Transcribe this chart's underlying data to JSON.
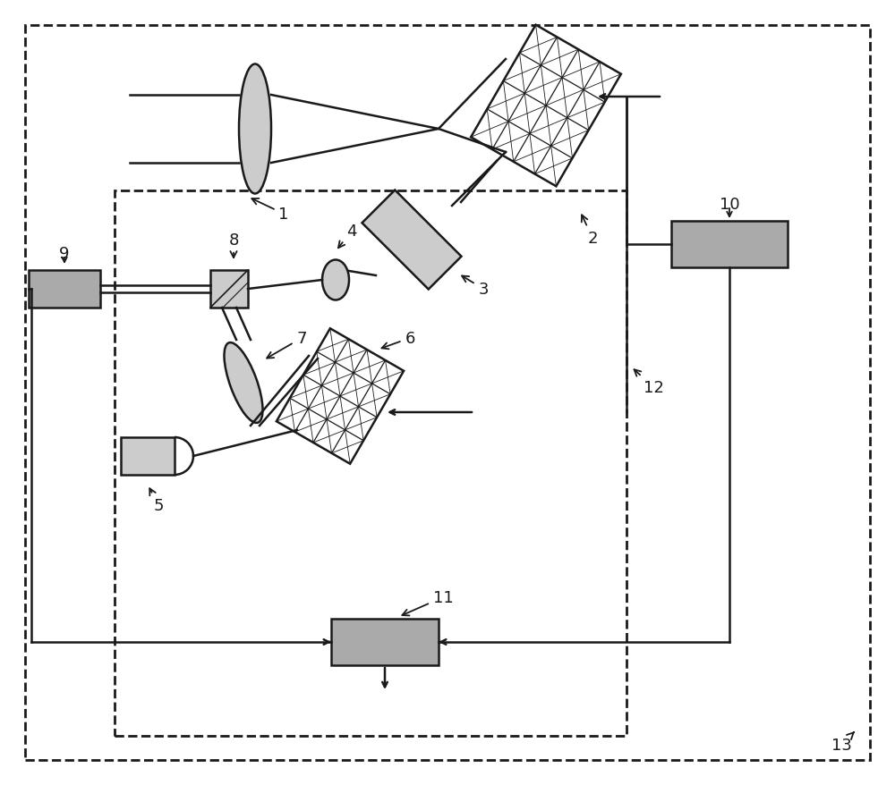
{
  "bg_color": "#ffffff",
  "color_dark": "#1a1a1a",
  "color_gray": "#aaaaaa",
  "color_lightgray": "#d0d0d0",
  "color_white": "#ffffff",
  "lw": 1.8
}
